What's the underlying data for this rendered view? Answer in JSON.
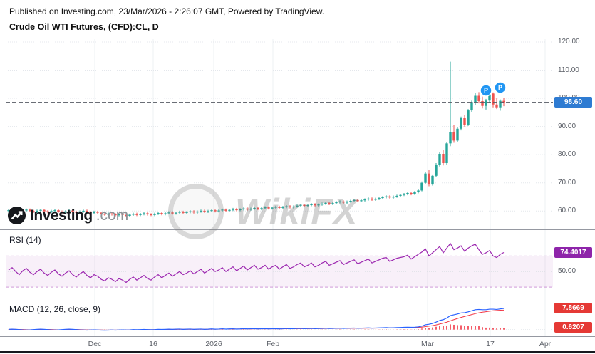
{
  "header": {
    "published_line": "Published on Investing.com, 23/Mar/2026 - 2:26:07 GMT, Powered by TradingView.",
    "instrument_title": "Crude Oil WTI Futures, (CFD):CL, D"
  },
  "watermarks": {
    "investing_name": "Investing",
    "investing_suffix": ".com",
    "wikifx": "WikiFX"
  },
  "time_axis": {
    "labels": [
      "Dec",
      "16",
      "2026",
      "Feb",
      "Mar",
      "17",
      "Apr"
    ]
  },
  "colors": {
    "up": "#26a69a",
    "down": "#ef5350",
    "price_badge": "#2e7bd2",
    "marker": "#2196f3",
    "rsi_line": "#9c27b0",
    "rsi_badge": "#8e24aa",
    "macd_line": "#2962ff",
    "macd_signal": "#f23645",
    "macd_hist": "#f23645",
    "macd_badge": "#e53935"
  },
  "chart_data": {
    "type": "candlestick",
    "title": "Crude Oil WTI Futures, (CFD):CL, D",
    "ylim": [
      54,
      121
    ],
    "last_price": 98.6,
    "last_price_label": "98.60",
    "yticks": [
      {
        "value": 120,
        "label": "120.00"
      },
      {
        "value": 110,
        "label": "110.00"
      },
      {
        "value": 100,
        "label": "100.00"
      },
      {
        "value": 90,
        "label": "90.00"
      },
      {
        "value": 80,
        "label": "80.00"
      },
      {
        "value": 70,
        "label": "70.00"
      },
      {
        "value": 60,
        "label": "60.00"
      }
    ],
    "ohlc": [
      [
        60.0,
        60.7,
        59.6,
        60.3
      ],
      [
        60.3,
        61.0,
        59.9,
        60.6
      ],
      [
        60.6,
        61.0,
        59.7,
        60.1
      ],
      [
        60.1,
        60.5,
        59.4,
        59.8
      ],
      [
        59.8,
        60.6,
        59.4,
        60.2
      ],
      [
        60.2,
        60.9,
        59.8,
        60.5
      ],
      [
        60.5,
        60.9,
        59.6,
        60.0
      ],
      [
        60.0,
        60.4,
        59.3,
        59.7
      ],
      [
        59.7,
        60.5,
        59.3,
        60.1
      ],
      [
        60.1,
        60.8,
        59.7,
        60.4
      ],
      [
        60.4,
        60.8,
        59.5,
        59.9
      ],
      [
        59.9,
        60.3,
        59.2,
        59.6
      ],
      [
        59.6,
        60.4,
        59.2,
        60.0
      ],
      [
        60.0,
        60.7,
        59.6,
        60.3
      ],
      [
        60.3,
        60.7,
        59.4,
        59.8
      ],
      [
        59.8,
        60.2,
        59.1,
        59.5
      ],
      [
        59.5,
        60.3,
        59.1,
        59.9
      ],
      [
        59.9,
        60.6,
        59.5,
        60.2
      ],
      [
        60.2,
        60.6,
        59.3,
        59.7
      ],
      [
        59.7,
        60.1,
        59.0,
        59.4
      ],
      [
        59.4,
        60.2,
        59.0,
        59.8
      ],
      [
        59.8,
        60.5,
        59.4,
        60.1
      ],
      [
        60.1,
        60.5,
        59.2,
        59.6
      ],
      [
        59.6,
        60.0,
        58.9,
        59.3
      ],
      [
        59.3,
        60.1,
        58.9,
        59.7
      ],
      [
        59.7,
        60.1,
        59.0,
        59.4
      ],
      [
        59.4,
        59.8,
        58.6,
        59.0
      ],
      [
        59.0,
        59.4,
        58.3,
        58.7
      ],
      [
        58.7,
        59.5,
        58.3,
        59.1
      ],
      [
        59.1,
        59.5,
        58.4,
        58.8
      ],
      [
        58.8,
        59.2,
        58.1,
        58.5
      ],
      [
        58.5,
        59.3,
        58.1,
        58.9
      ],
      [
        58.9,
        59.3,
        58.2,
        58.6
      ],
      [
        58.6,
        59.0,
        57.9,
        58.3
      ],
      [
        58.3,
        59.1,
        57.9,
        58.7
      ],
      [
        58.7,
        59.4,
        58.3,
        59.0
      ],
      [
        59.0,
        59.4,
        58.2,
        58.6
      ],
      [
        58.6,
        59.3,
        58.2,
        58.9
      ],
      [
        58.9,
        59.6,
        58.5,
        59.2
      ],
      [
        59.2,
        59.6,
        58.4,
        58.8
      ],
      [
        58.8,
        59.2,
        58.2,
        58.6
      ],
      [
        58.6,
        59.4,
        58.2,
        59.0
      ],
      [
        59.0,
        59.7,
        58.6,
        59.3
      ],
      [
        59.3,
        59.7,
        58.5,
        58.9
      ],
      [
        58.9,
        59.6,
        58.5,
        59.2
      ],
      [
        59.2,
        59.9,
        58.8,
        59.5
      ],
      [
        59.5,
        59.9,
        58.7,
        59.1
      ],
      [
        59.1,
        59.8,
        58.7,
        59.4
      ],
      [
        59.4,
        60.1,
        59.0,
        59.7
      ],
      [
        59.7,
        60.1,
        58.9,
        59.3
      ],
      [
        59.3,
        60.0,
        58.9,
        59.6
      ],
      [
        59.6,
        60.3,
        59.2,
        59.9
      ],
      [
        59.9,
        60.3,
        59.1,
        59.5
      ],
      [
        59.5,
        60.2,
        59.1,
        59.8
      ],
      [
        59.8,
        60.5,
        59.4,
        60.1
      ],
      [
        60.1,
        60.5,
        59.3,
        59.7
      ],
      [
        59.7,
        60.4,
        59.3,
        60.0
      ],
      [
        60.0,
        60.7,
        59.6,
        60.3
      ],
      [
        60.3,
        60.7,
        59.5,
        59.9
      ],
      [
        59.9,
        60.6,
        59.5,
        60.2
      ],
      [
        60.2,
        60.9,
        59.8,
        60.5
      ],
      [
        60.5,
        60.9,
        59.7,
        60.1
      ],
      [
        60.1,
        60.8,
        59.7,
        60.4
      ],
      [
        60.4,
        61.1,
        60.0,
        60.7
      ],
      [
        60.7,
        61.1,
        59.9,
        60.3
      ],
      [
        60.3,
        61.0,
        59.9,
        60.6
      ],
      [
        60.6,
        61.3,
        60.2,
        60.9
      ],
      [
        60.9,
        61.3,
        60.1,
        60.5
      ],
      [
        60.5,
        61.2,
        60.1,
        60.8
      ],
      [
        60.8,
        61.5,
        60.4,
        61.1
      ],
      [
        61.1,
        61.5,
        60.3,
        60.7
      ],
      [
        60.7,
        61.4,
        60.3,
        61.0
      ],
      [
        61.0,
        61.7,
        60.6,
        61.3
      ],
      [
        61.3,
        61.7,
        60.5,
        60.9
      ],
      [
        60.9,
        61.6,
        60.5,
        61.2
      ],
      [
        61.2,
        61.9,
        60.8,
        61.5
      ],
      [
        61.5,
        61.9,
        60.7,
        61.1
      ],
      [
        61.1,
        61.8,
        60.7,
        61.4
      ],
      [
        61.4,
        62.1,
        61.0,
        61.7
      ],
      [
        61.7,
        62.1,
        60.9,
        61.3
      ],
      [
        61.3,
        62.0,
        60.9,
        61.6
      ],
      [
        61.6,
        62.3,
        61.2,
        61.9
      ],
      [
        61.9,
        62.6,
        61.5,
        62.2
      ],
      [
        62.2,
        62.6,
        61.4,
        61.8
      ],
      [
        61.8,
        62.5,
        61.4,
        62.1
      ],
      [
        62.1,
        62.8,
        61.7,
        62.4
      ],
      [
        62.4,
        62.8,
        61.6,
        62.0
      ],
      [
        62.0,
        62.7,
        61.6,
        62.3
      ],
      [
        62.3,
        63.0,
        61.9,
        62.6
      ],
      [
        62.6,
        63.3,
        62.2,
        62.9
      ],
      [
        62.9,
        63.3,
        62.1,
        62.5
      ],
      [
        62.5,
        63.2,
        62.1,
        62.8
      ],
      [
        62.8,
        63.5,
        62.4,
        63.1
      ],
      [
        63.1,
        63.8,
        62.7,
        63.4
      ],
      [
        63.4,
        63.8,
        62.6,
        63.0
      ],
      [
        63.0,
        63.7,
        62.6,
        63.3
      ],
      [
        63.3,
        64.0,
        62.9,
        63.6
      ],
      [
        63.6,
        64.3,
        63.2,
        63.9
      ],
      [
        63.9,
        64.3,
        63.1,
        63.5
      ],
      [
        63.5,
        64.2,
        63.1,
        63.8
      ],
      [
        63.8,
        64.5,
        63.4,
        64.1
      ],
      [
        64.1,
        64.8,
        63.7,
        64.4
      ],
      [
        64.4,
        64.8,
        63.6,
        64.0
      ],
      [
        64.0,
        64.7,
        63.6,
        64.3
      ],
      [
        64.3,
        65.0,
        63.9,
        64.6
      ],
      [
        64.6,
        65.3,
        64.2,
        64.9
      ],
      [
        64.9,
        65.6,
        64.5,
        65.2
      ],
      [
        65.2,
        65.6,
        64.4,
        64.8
      ],
      [
        64.8,
        65.5,
        64.4,
        65.1
      ],
      [
        65.1,
        65.8,
        64.7,
        65.4
      ],
      [
        65.4,
        66.1,
        65.0,
        65.7
      ],
      [
        65.7,
        66.4,
        65.3,
        66.0
      ],
      [
        66.0,
        66.8,
        65.6,
        66.4
      ],
      [
        66.4,
        66.8,
        65.6,
        66.0
      ],
      [
        66.0,
        67.1,
        65.7,
        66.7
      ],
      [
        66.7,
        67.7,
        66.3,
        67.3
      ],
      [
        67.3,
        70.5,
        67.0,
        70.0
      ],
      [
        70.0,
        73.8,
        69.5,
        73.3
      ],
      [
        73.3,
        74.5,
        68.8,
        69.4
      ],
      [
        69.4,
        73.0,
        69.0,
        72.5
      ],
      [
        72.5,
        77.0,
        72.0,
        76.4
      ],
      [
        76.4,
        81.0,
        75.8,
        80.3
      ],
      [
        80.3,
        81.8,
        76.2,
        77.0
      ],
      [
        77.0,
        84.5,
        76.5,
        84.0
      ],
      [
        84.0,
        113.0,
        83.0,
        88.0
      ],
      [
        88.0,
        90.5,
        84.2,
        85.0
      ],
      [
        85.0,
        89.8,
        84.6,
        89.2
      ],
      [
        89.2,
        93.5,
        88.6,
        93.0
      ],
      [
        93.0,
        94.2,
        89.8,
        90.6
      ],
      [
        90.6,
        96.2,
        90.2,
        95.7
      ],
      [
        95.7,
        99.2,
        95.2,
        98.7
      ],
      [
        98.7,
        101.8,
        97.6,
        100.9
      ],
      [
        100.9,
        102.2,
        98.2,
        99.0
      ],
      [
        99.0,
        100.6,
        96.4,
        97.3
      ],
      [
        97.3,
        99.8,
        96.0,
        99.2
      ],
      [
        99.2,
        102.6,
        98.6,
        101.7
      ],
      [
        101.7,
        102.1,
        96.8,
        97.8
      ],
      [
        97.8,
        100.2,
        96.2,
        96.8
      ],
      [
        96.8,
        99.6,
        95.6,
        99.1
      ],
      [
        99.1,
        100.1,
        97.2,
        98.6
      ]
    ],
    "markers": [
      {
        "index": 134,
        "price": 102.8,
        "label": "P"
      },
      {
        "index": 138,
        "price": 103.8,
        "label": "P"
      }
    ],
    "indicators": {
      "rsi": {
        "label": "RSI (14)",
        "period": 14,
        "last": 74.4017,
        "last_label": "74.4017",
        "levels": [
          30,
          70
        ],
        "ticks": [
          {
            "value": 50,
            "label": "50.00"
          }
        ],
        "values": [
          52,
          55,
          50,
          46,
          51,
          54,
          49,
          46,
          50,
          53,
          48,
          45,
          49,
          52,
          47,
          44,
          48,
          51,
          46,
          43,
          47,
          50,
          45,
          42,
          46,
          44,
          40,
          38,
          42,
          40,
          37,
          41,
          39,
          36,
          40,
          43,
          39,
          42,
          45,
          41,
          39,
          43,
          46,
          42,
          45,
          48,
          44,
          47,
          50,
          46,
          48,
          51,
          47,
          50,
          53,
          48,
          51,
          54,
          50,
          52,
          55,
          50,
          53,
          56,
          51,
          54,
          57,
          52,
          55,
          58,
          53,
          55,
          58,
          53,
          56,
          58,
          53,
          56,
          59,
          54,
          56,
          59,
          61,
          56,
          58,
          61,
          56,
          58,
          61,
          63,
          58,
          60,
          62,
          64,
          59,
          61,
          63,
          65,
          60,
          62,
          64,
          66,
          61,
          63,
          65,
          67,
          68,
          63,
          65,
          67,
          68,
          69,
          71,
          66,
          69,
          72,
          75,
          79,
          70,
          74,
          78,
          82,
          74,
          80,
          86,
          78,
          80,
          83,
          76,
          80,
          83,
          85,
          78,
          72,
          74,
          77,
          70,
          68,
          72,
          74.4
        ]
      },
      "macd": {
        "label": "MACD (12, 26, close, 9)",
        "params": "12, 26, close, 9",
        "last_macd": 7.8669,
        "last_hist": 0.6207,
        "last_labels": [
          "7.8669",
          "0.6207"
        ],
        "macd": [
          0.1,
          0.15,
          0.1,
          0,
          -0.1,
          -0.15,
          -0.1,
          0,
          0.1,
          0.15,
          0.1,
          0,
          -0.1,
          -0.15,
          -0.1,
          0,
          0.1,
          0.15,
          0.1,
          0,
          -0.1,
          -0.15,
          -0.2,
          -0.15,
          -0.1,
          -0.15,
          -0.2,
          -0.25,
          -0.2,
          -0.15,
          -0.2,
          -0.15,
          -0.1,
          -0.15,
          -0.1,
          0,
          -0.05,
          0,
          0.05,
          0,
          -0.05,
          0,
          0.1,
          0.05,
          0.1,
          0.15,
          0.1,
          0.15,
          0.2,
          0.1,
          0.15,
          0.2,
          0.1,
          0.15,
          0.2,
          0.1,
          0.15,
          0.25,
          0.15,
          0.2,
          0.3,
          0.2,
          0.25,
          0.3,
          0.2,
          0.25,
          0.35,
          0.25,
          0.3,
          0.35,
          0.25,
          0.3,
          0.35,
          0.25,
          0.3,
          0.35,
          0.25,
          0.3,
          0.4,
          0.3,
          0.35,
          0.4,
          0.45,
          0.35,
          0.4,
          0.45,
          0.35,
          0.4,
          0.45,
          0.5,
          0.4,
          0.45,
          0.5,
          0.55,
          0.45,
          0.5,
          0.55,
          0.6,
          0.5,
          0.55,
          0.6,
          0.65,
          0.55,
          0.6,
          0.65,
          0.7,
          0.75,
          0.65,
          0.7,
          0.75,
          0.8,
          0.85,
          0.9,
          0.85,
          0.9,
          1.0,
          1.3,
          1.8,
          2.0,
          2.3,
          2.8,
          3.4,
          3.7,
          4.3,
          5.2,
          5.5,
          5.8,
          6.2,
          6.3,
          6.6,
          7.0,
          7.4,
          7.5,
          7.4,
          7.4,
          7.6,
          7.6,
          7.5,
          7.7,
          7.87
        ],
        "signal": [
          0.05,
          0.08,
          0.09,
          0.07,
          0.02,
          -0.03,
          -0.06,
          -0.05,
          -0.02,
          0.03,
          0.06,
          0.05,
          0.01,
          -0.04,
          -0.07,
          -0.06,
          -0.02,
          0.03,
          0.06,
          0.05,
          0,
          -0.05,
          -0.1,
          -0.12,
          -0.12,
          -0.13,
          -0.15,
          -0.18,
          -0.19,
          -0.18,
          -0.18,
          -0.17,
          -0.15,
          -0.15,
          -0.13,
          -0.1,
          -0.08,
          -0.06,
          -0.03,
          -0.02,
          -0.03,
          -0.02,
          0.01,
          0.02,
          0.04,
          0.07,
          0.08,
          0.1,
          0.12,
          0.12,
          0.13,
          0.14,
          0.13,
          0.14,
          0.15,
          0.14,
          0.14,
          0.17,
          0.17,
          0.18,
          0.2,
          0.2,
          0.21,
          0.23,
          0.22,
          0.23,
          0.26,
          0.26,
          0.27,
          0.29,
          0.28,
          0.28,
          0.3,
          0.29,
          0.29,
          0.3,
          0.29,
          0.29,
          0.32,
          0.32,
          0.32,
          0.34,
          0.36,
          0.36,
          0.37,
          0.39,
          0.38,
          0.38,
          0.4,
          0.42,
          0.42,
          0.42,
          0.44,
          0.46,
          0.46,
          0.47,
          0.49,
          0.51,
          0.51,
          0.52,
          0.53,
          0.56,
          0.56,
          0.57,
          0.58,
          0.61,
          0.64,
          0.64,
          0.65,
          0.67,
          0.7,
          0.73,
          0.76,
          0.78,
          0.8,
          0.84,
          0.93,
          1.1,
          1.28,
          1.48,
          1.75,
          2.08,
          2.4,
          2.78,
          3.26,
          3.71,
          4.13,
          4.54,
          4.89,
          5.23,
          5.58,
          5.94,
          6.25,
          6.48,
          6.66,
          6.85,
          7.0,
          7.1,
          7.22,
          7.25
        ]
      }
    }
  }
}
